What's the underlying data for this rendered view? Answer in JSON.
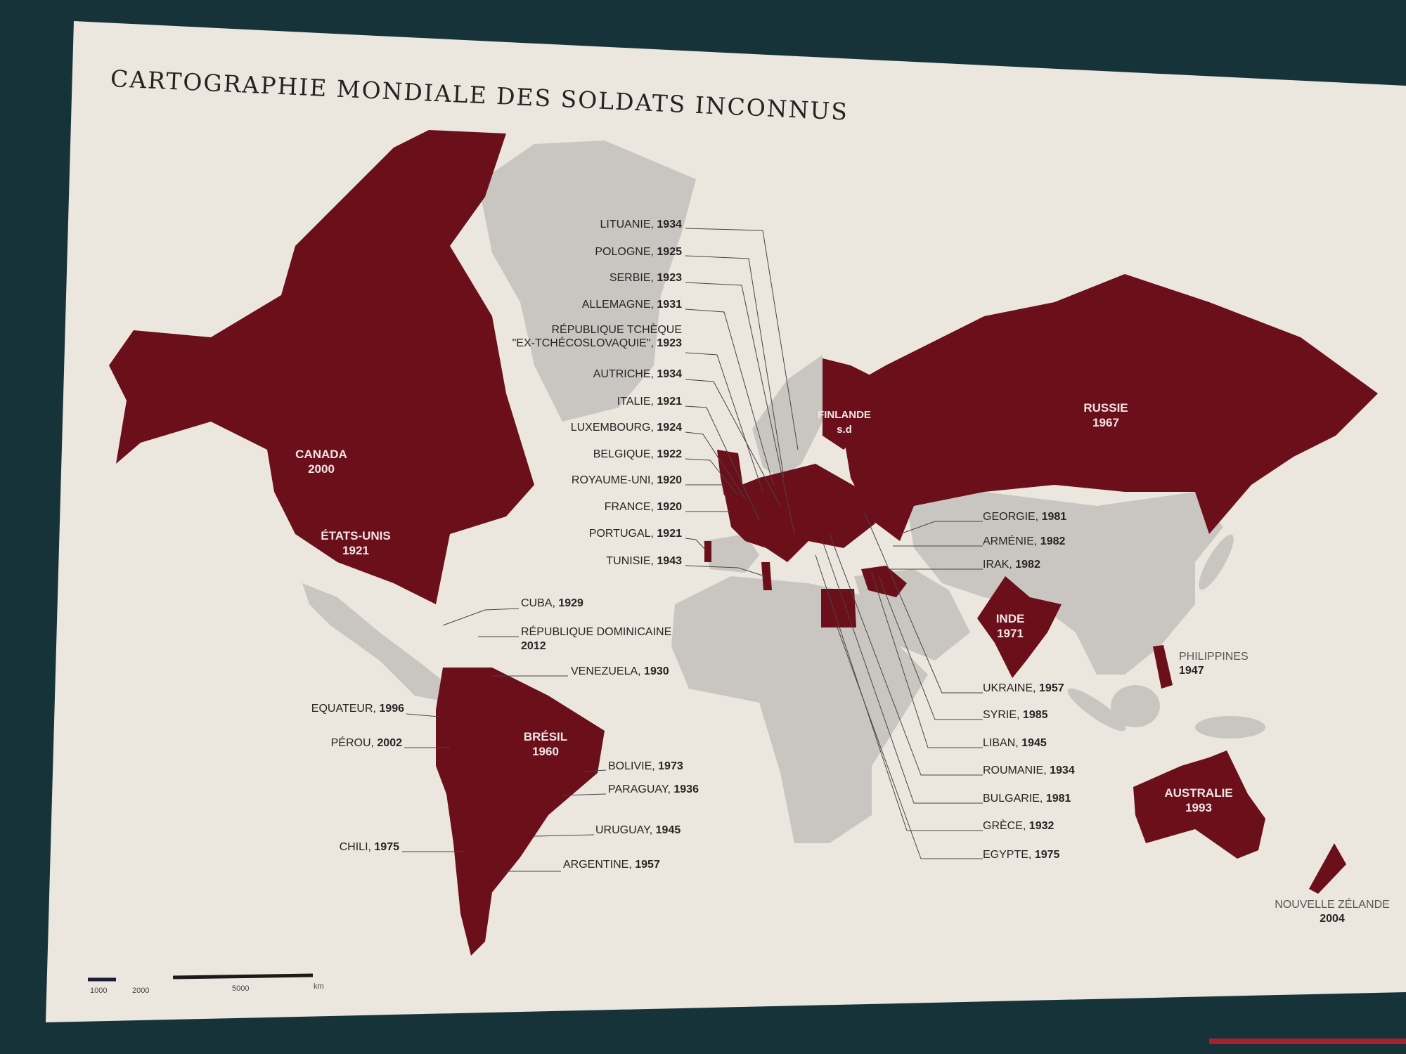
{
  "title": "CARTOGRAPHIE MONDIALE DES SOLDATS INCONNUS",
  "colors": {
    "highlight": "#6b0f1a",
    "land": "#c9c6c2",
    "paper": "#ebe6de",
    "frame": "#17333a"
  },
  "europe_labels": [
    {
      "name": "LITUANIE,",
      "year": "1934"
    },
    {
      "name": "POLOGNE,",
      "year": "1925"
    },
    {
      "name": "SERBIE,",
      "year": "1923"
    },
    {
      "name": "ALLEMAGNE,",
      "year": "1931"
    },
    {
      "name": "RÉPUBLIQUE TCHÈQUE \"EX-TCHÉCOSLOVAQUIE\",",
      "year": "1923"
    },
    {
      "name": "AUTRICHE,",
      "year": "1934"
    },
    {
      "name": "ITALIE,",
      "year": "1921"
    },
    {
      "name": "LUXEMBOURG,",
      "year": "1924"
    },
    {
      "name": "BELGIQUE,",
      "year": "1922"
    },
    {
      "name": "ROYAUME-UNI,",
      "year": "1920"
    },
    {
      "name": "FRANCE,",
      "year": "1920"
    },
    {
      "name": "PORTUGAL,",
      "year": "1921"
    },
    {
      "name": "TUNISIE,",
      "year": "1943"
    }
  ],
  "east_labels": [
    {
      "name": "GEORGIE,",
      "year": "1981"
    },
    {
      "name": "ARMÉNIE,",
      "year": "1982"
    },
    {
      "name": "IRAK,",
      "year": "1982"
    },
    {
      "name": "UKRAINE,",
      "year": "1957"
    },
    {
      "name": "SYRIE,",
      "year": "1985"
    },
    {
      "name": "LIBAN,",
      "year": "1945"
    },
    {
      "name": "ROUMANIE,",
      "year": "1934"
    },
    {
      "name": "BULGARIE,",
      "year": "1981"
    },
    {
      "name": "GRÈCE,",
      "year": "1932"
    },
    {
      "name": "EGYPTE,",
      "year": "1975"
    }
  ],
  "americas_labels": {
    "cuba": {
      "name": "CUBA,",
      "year": "1929"
    },
    "dominicaine": {
      "name": "RÉPUBLIQUE DOMINICAINE",
      "year": "2012"
    },
    "venezuela": {
      "name": "VENEZUELA,",
      "year": "1930"
    },
    "equateur": {
      "name": "EQUATEUR,",
      "year": "1996"
    },
    "perou": {
      "name": "PÉROU,",
      "year": "2002"
    },
    "bolivie": {
      "name": "BOLIVIE,",
      "year": "1973"
    },
    "paraguay": {
      "name": "PARAGUAY,",
      "year": "1936"
    },
    "uruguay": {
      "name": "URUGUAY,",
      "year": "1945"
    },
    "chili": {
      "name": "CHILI,",
      "year": "1975"
    },
    "argentine": {
      "name": "ARGENTINE,",
      "year": "1957"
    }
  },
  "country_labels": {
    "canada": "CANADA\n2000",
    "usa": "ÉTATS-UNIS\n1921",
    "bresil": "BRÉSIL\n1960",
    "finlande": "FINLANDE\ns.d",
    "russie": "RUSSIE\n1967",
    "inde": "INDE\n1971",
    "australie": "AUSTRALIE\n1993",
    "philippines": {
      "name": "PHILIPPINES",
      "year": "1947"
    },
    "nz": {
      "name": "NOUVELLE ZÉLANDE",
      "year": "2004"
    }
  },
  "scale": {
    "a": "1000",
    "b": "2000",
    "c": "5000",
    "unit": "km"
  }
}
